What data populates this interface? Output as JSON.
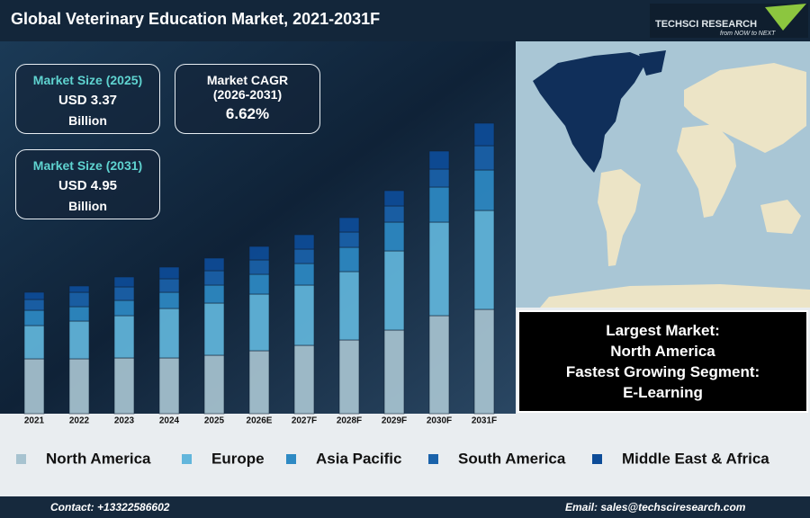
{
  "chart_data": {
    "type": "bar",
    "stacked": true,
    "title": "Global Veterinary Education Market, 2021-2031F",
    "categories": [
      "2021",
      "2022",
      "2023",
      "2024",
      "2025",
      "2026E",
      "2027F",
      "2028F",
      "2029F",
      "2030F",
      "2031F"
    ],
    "series": [
      {
        "name": "North America",
        "color": "#a7c3d0",
        "values": [
          61,
          61,
          62,
          62,
          65,
          70,
          76,
          82,
          93,
          109,
          116
        ]
      },
      {
        "name": "Europe",
        "color": "#62b6dc",
        "values": [
          37,
          42,
          47,
          55,
          58,
          63,
          67,
          76,
          88,
          104,
          110
        ]
      },
      {
        "name": "Asia Pacific",
        "color": "#2e8ac4",
        "values": [
          17,
          16,
          17,
          18,
          20,
          22,
          24,
          27,
          32,
          39,
          45
        ]
      },
      {
        "name": "South America",
        "color": "#1a62aa",
        "values": [
          12,
          16,
          15,
          15,
          16,
          16,
          16,
          17,
          18,
          20,
          27
        ]
      },
      {
        "name": "Middle East & Africa",
        "color": "#0d4c98",
        "values": [
          8,
          7,
          11,
          13,
          14,
          15,
          16,
          16,
          17,
          20,
          25
        ]
      }
    ],
    "ylim": [
      0,
      330
    ]
  },
  "kpis": [
    {
      "label": "Market Size (2025)",
      "value": "USD 3.37",
      "unit": "Billion"
    },
    {
      "label": "Market CAGR",
      "sublabel": "(2026-2031)",
      "value": "6.62%"
    },
    {
      "label": "Market Size (2031)",
      "value": "USD 4.95",
      "unit": "Billion"
    }
  ],
  "highlights": [
    "Largest Market:",
    "North America",
    "Fastest Growing Segment:",
    "E-Learning"
  ],
  "logo": {
    "name": "TECHSCI RESEARCH",
    "tagline": "from NOW to NEXT"
  },
  "footer": {
    "contact": "Contact: +13322586602",
    "email": "Email: sales@techsciresearch.com"
  }
}
